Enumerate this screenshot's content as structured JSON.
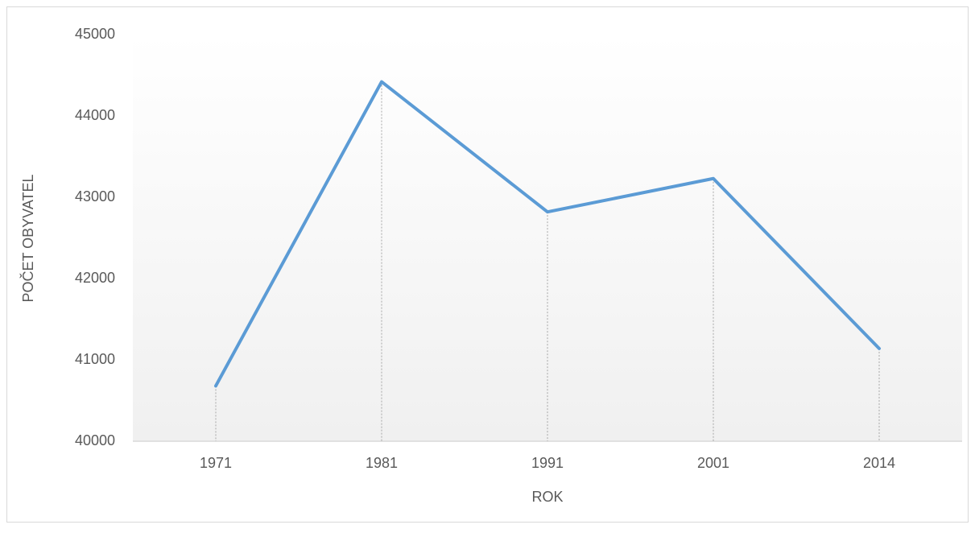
{
  "chart_data": {
    "type": "line",
    "categories": [
      "1971",
      "1981",
      "1991",
      "2001",
      "2014"
    ],
    "series": [
      {
        "name": "POČET OBYVATEL",
        "color": "#5b9bd5",
        "values": [
          40680,
          44420,
          42820,
          43230,
          41140
        ]
      }
    ],
    "xlabel": "ROK",
    "ylabel": "POČET OBYVATEL",
    "ylim": [
      40000,
      45000
    ],
    "yticks": [
      40000,
      41000,
      42000,
      43000,
      44000,
      45000
    ],
    "drop_lines": true
  }
}
